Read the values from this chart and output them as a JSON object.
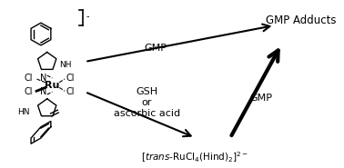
{
  "background_color": "#ffffff",
  "arrow_color": "#000000",
  "text_color": "#000000",
  "gmp_top_label": "GMP",
  "gmp_right_label": "GMP",
  "adducts_label": "GMP Adducts",
  "figsize": [
    3.78,
    1.85
  ],
  "dpi": 100
}
